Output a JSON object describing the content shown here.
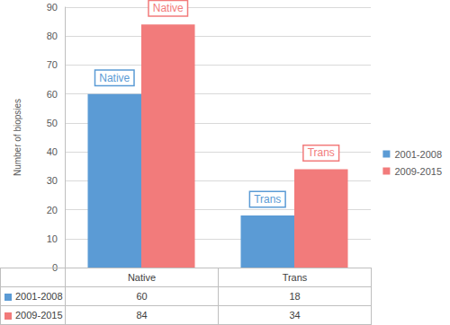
{
  "chart_data": {
    "type": "bar",
    "y_label": "Number of biopsies",
    "categories": [
      "Native",
      "Trans"
    ],
    "series": [
      {
        "name": "2001-2008",
        "color": "#5b9bd5",
        "values": [
          60,
          18
        ]
      },
      {
        "name": "2009-2015",
        "color": "#f27b7b",
        "values": [
          84,
          34
        ]
      }
    ],
    "ylim": [
      0,
      90
    ],
    "yticks": [
      0,
      10,
      20,
      30,
      40,
      50,
      60,
      70,
      80,
      90
    ],
    "grid": true,
    "legend": "right"
  }
}
